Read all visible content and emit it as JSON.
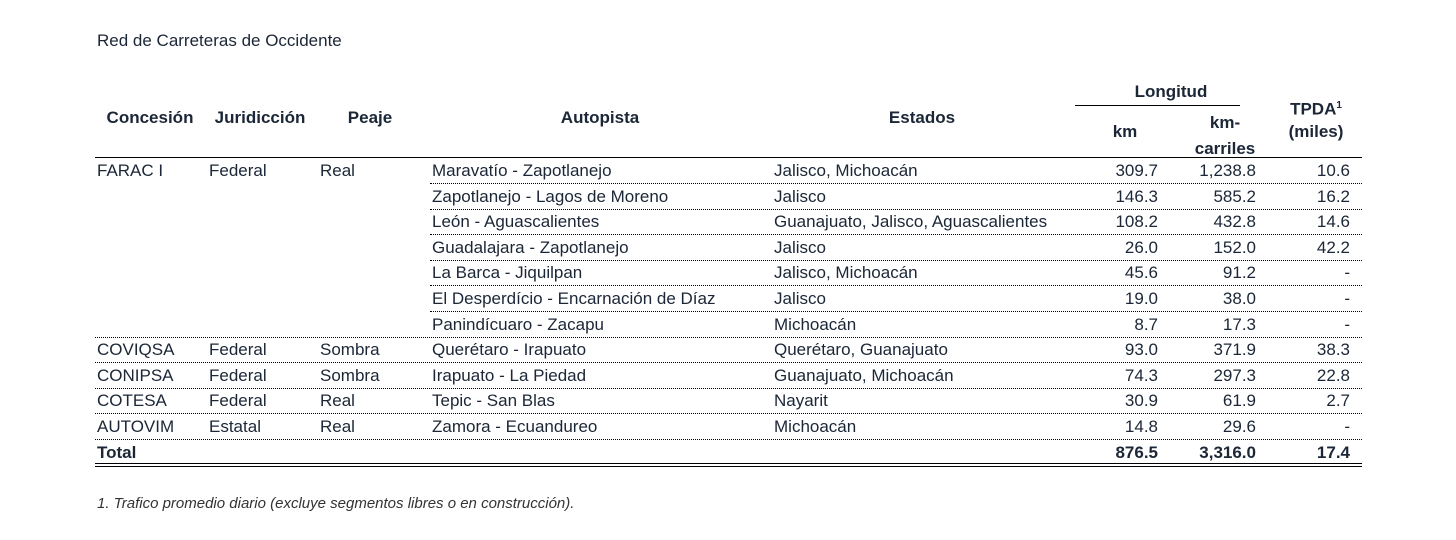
{
  "title": "Red de Carreteras de Occidente",
  "header": {
    "concesion": "Concesión",
    "jurisdiccion": "Juridicción",
    "peaje": "Peaje",
    "autopista": "Autopista",
    "estados": "Estados",
    "longitud": "Longitud",
    "km": "km",
    "km_carriles": "km-carriles",
    "tpda": "TPDA",
    "tpda_note": "1",
    "tpda_unit": "(miles)"
  },
  "groups": [
    {
      "concesion": "FARAC I",
      "jurisdiccion": "Federal",
      "peaje": "Real",
      "roads": [
        {
          "autopista": "Maravatío - Zapotlanejo",
          "estados": "Jalisco, Michoacán",
          "km": "309.7",
          "km_carriles": "1,238.8",
          "tpda": "10.6"
        },
        {
          "autopista": "Zapotlanejo - Lagos de Moreno",
          "estados": "Jalisco",
          "km": "146.3",
          "km_carriles": "585.2",
          "tpda": "16.2"
        },
        {
          "autopista": "León - Aguascalientes",
          "estados": "Guanajuato, Jalisco, Aguascalientes",
          "km": "108.2",
          "km_carriles": "432.8",
          "tpda": "14.6"
        },
        {
          "autopista": "Guadalajara - Zapotlanejo",
          "estados": "Jalisco",
          "km": "26.0",
          "km_carriles": "152.0",
          "tpda": "42.2"
        },
        {
          "autopista": "La Barca - Jiquilpan",
          "estados": "Jalisco, Michoacán",
          "km": "45.6",
          "km_carriles": "91.2",
          "tpda": "-"
        },
        {
          "autopista": "El Desperdício - Encarnación de Díaz",
          "estados": "Jalisco",
          "km": "19.0",
          "km_carriles": "38.0",
          "tpda": "-"
        },
        {
          "autopista": "Panindícuaro - Zacapu",
          "estados": "Michoacán",
          "km": "8.7",
          "km_carriles": "17.3",
          "tpda": "-"
        }
      ]
    },
    {
      "concesion": "COVIQSA",
      "jurisdiccion": "Federal",
      "peaje": "Sombra",
      "roads": [
        {
          "autopista": "Querétaro - Irapuato",
          "estados": "Querétaro, Guanajuato",
          "km": "93.0",
          "km_carriles": "371.9",
          "tpda": "38.3"
        }
      ]
    },
    {
      "concesion": "CONIPSA",
      "jurisdiccion": "Federal",
      "peaje": "Sombra",
      "roads": [
        {
          "autopista": "Irapuato - La Piedad",
          "estados": "Guanajuato, Michoacán",
          "km": "74.3",
          "km_carriles": "297.3",
          "tpda": "22.8"
        }
      ]
    },
    {
      "concesion": "COTESA",
      "jurisdiccion": "Federal",
      "peaje": "Real",
      "roads": [
        {
          "autopista": "Tepic - San Blas",
          "estados": "Nayarit",
          "km": "30.9",
          "km_carriles": "61.9",
          "tpda": "2.7"
        }
      ]
    },
    {
      "concesion": "AUTOVIM",
      "jurisdiccion": "Estatal",
      "peaje": "Real",
      "roads": [
        {
          "autopista": "Zamora - Ecuandureo",
          "estados": "Michoacán",
          "km": "14.8",
          "km_carriles": "29.6",
          "tpda": "-"
        }
      ]
    }
  ],
  "total": {
    "label": "Total",
    "km": "876.5",
    "km_carriles": "3,316.0",
    "tpda": "17.4"
  },
  "footnote": "1. Trafico promedio diario (excluye segmentos libres o en construcción)."
}
